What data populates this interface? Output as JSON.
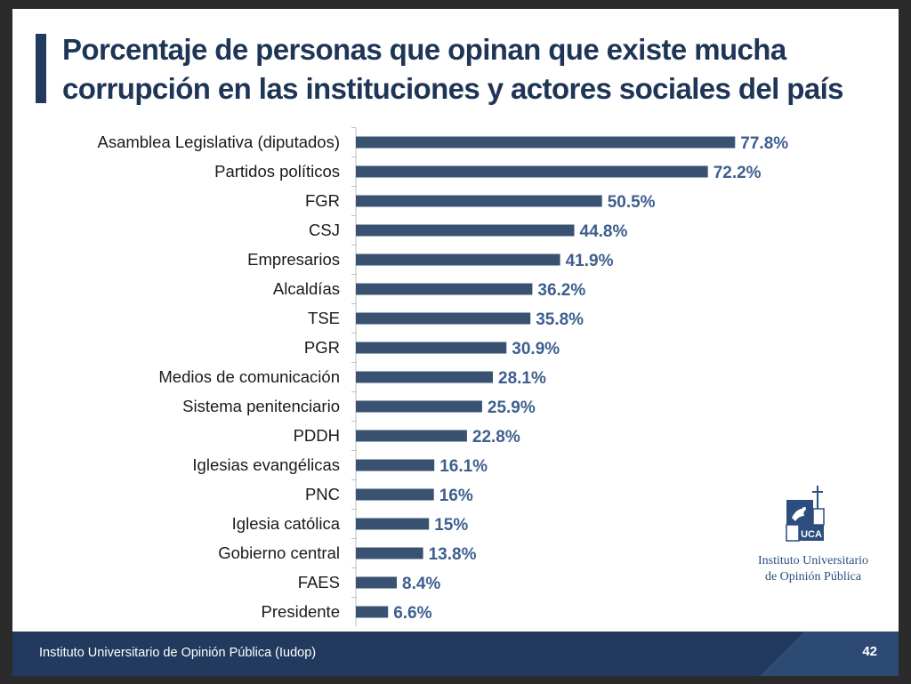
{
  "slide": {
    "title": "Porcentaje de personas que opinan que existe mucha corrupción en las instituciones y actores sociales del país",
    "footer_text": "Instituto Universitario de Opinión Pública (Iudop)",
    "page_number": "42",
    "logo": {
      "text": "UCA",
      "caption_line1": "Instituto Universitario",
      "caption_line2": "de Opinión Pública"
    }
  },
  "colors": {
    "bar": "#3a5272",
    "value_label": "#3d5f8e",
    "title": "#1f3556",
    "footer_bg": "#223a5e",
    "slide_bg": "#ffffff"
  },
  "chart_data": {
    "type": "bar",
    "orientation": "horizontal",
    "title": "Porcentaje de personas que opinan que existe mucha corrupción en las instituciones y actores sociales del país",
    "xlabel": "",
    "ylabel": "",
    "xlim": [
      0,
      100
    ],
    "grid": false,
    "legend": "none",
    "categories": [
      "Asamblea Legislativa (diputados)",
      "Partidos políticos",
      "FGR",
      "CSJ",
      "Empresarios",
      "Alcaldías",
      "TSE",
      "PGR",
      "Medios de comunicación",
      "Sistema penitenciario",
      "PDDH",
      "Iglesias evangélicas",
      "PNC",
      "Iglesia católica",
      "Gobierno central",
      "FAES",
      "Presidente"
    ],
    "values": [
      77.8,
      72.2,
      50.5,
      44.8,
      41.9,
      36.2,
      35.8,
      30.9,
      28.1,
      25.9,
      22.8,
      16.1,
      16,
      15,
      13.8,
      8.4,
      6.6
    ],
    "value_labels": [
      "77.8%",
      "72.2%",
      "50.5%",
      "44.8%",
      "41.9%",
      "36.2%",
      "35.8%",
      "30.9%",
      "28.1%",
      "25.9%",
      "22.8%",
      "16.1%",
      "16%",
      "15%",
      "13.8%",
      "8.4%",
      "6.6%"
    ]
  }
}
